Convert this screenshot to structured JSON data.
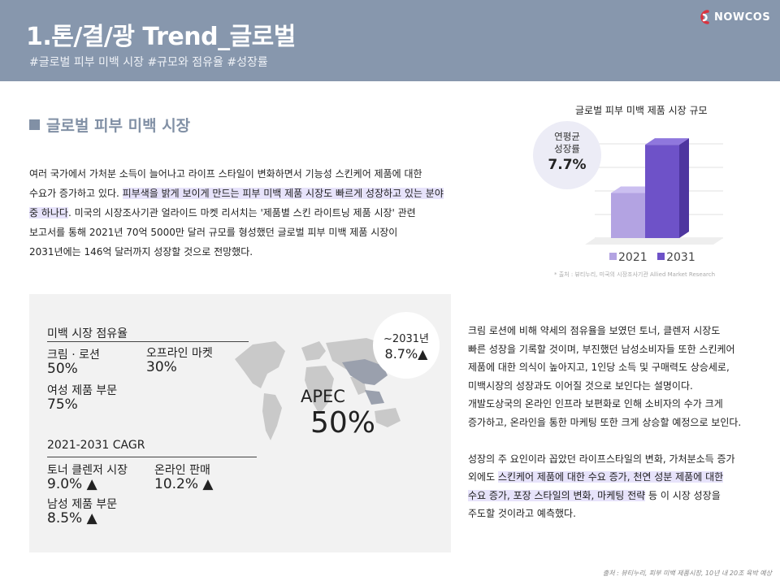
{
  "header": {
    "title": "1.톤/결/광 Trend_글로벌",
    "subtitle": "#글로벌 피부 미백 시장 #규모와 점유율 #성장률",
    "logo_text": "NOWCOS"
  },
  "section": {
    "heading": "글로벌 피부 미백 시장"
  },
  "intro": {
    "line1": " 여러 국가에서 가처분 소득이 늘어나고 라이프 스타일이 변화하면서 기능성 스킨케어 제품에 대한",
    "line2a": "수요가 증가하고 있다.  ",
    "line2b": "피부색을 밝게 보이게 만드는 피부 미백 제품 시장도 빠르게 성장하고 있는 분야",
    "line3a": "중 하나다",
    "line3b": ".  미국의 시장조사기관 얼라이드 마켓 리서치는 '제품별 스킨 라이트닝 제품 시장' 관련",
    "line4": "보고서를 통해 2021년 70억 5000만 달러 규모를 형성했던 글로벌 피부 미백 제품 시장이",
    "line5": "2031년에는 146억 달러까지 성장할 것으로 전망했다."
  },
  "chart": {
    "growth_label_1": "연평균",
    "growth_label_2": "성장률",
    "growth_value": "7.7%",
    "source": "* 출처 : 뷰티누리,  미국의 시장조사기관  Allied Market Research"
  },
  "chart_data": {
    "type": "bar",
    "title": "글로벌 피부 미백 제품 시장 규모",
    "categories": [
      "2021",
      "2031"
    ],
    "values": [
      70.5,
      146
    ],
    "colors": [
      "#b3a3e2",
      "#6e52c8"
    ],
    "legend_position": "bottom",
    "grid": true
  },
  "share_box": {
    "title": "미백 시장 점유율",
    "cream_label": "크림 · 로션",
    "cream_value": "50%",
    "offline_label": "오프라인 마켓",
    "offline_value": "30%",
    "female_label": "여성 제품 부문",
    "female_value": "75%",
    "forecast_label": "~2031년",
    "forecast_value": "8.7%▲",
    "apec_label": "APEC",
    "apec_value": "50%",
    "cagr_title": "2021-2031 CAGR",
    "toner_label": "토너 클렌저 시장",
    "toner_value": "9.0% ▲",
    "online_label": "온라인 판매",
    "online_value": "10.2% ▲",
    "male_label": "남성 제품 부문",
    "male_value": "8.5% ▲"
  },
  "body": {
    "l1": " 크림 로션에 비해 약세의 점유율을 보였던 토너, 클렌저 시장도",
    "l2": "빠른 성장을 기록할 것이며, 부진했던 남성소비자들 또한 스킨케어",
    "l3": "제품에 대한 의식이 높아지고, 1인당 소득 및 구매력도 상승세로,",
    "l4": "미백시장의 성장과도 이어질 것으로 보인다는 설명이다.",
    "l5": "개발도상국의 온라인 인프라 보편화로 인해 소비자의 수가 크게",
    "l6": "증가하고, 온라인을 통한 마케팅 또한 크게 상승할 예정으로 보인다.",
    "l7": " 성장의 주 요인이라 꼽았던 라이프스타일의 변화, 가처분소득 증가",
    "l8a": "외에도 ",
    "l8b": "스킨케어 제품에 대한 수요 증가, 천연 성분 제품에 대한",
    "l9a": "수요 증가, 포장 스타일의 변화, 마케팅 전략",
    "l9b": " 등 이 시장 성장을",
    "l10": "주도할 것이라고 예측했다."
  },
  "footer": {
    "source": "출처 : 뷰티누리,  피부 미백 제품시장,  10년 내 20조  육박 예상"
  }
}
